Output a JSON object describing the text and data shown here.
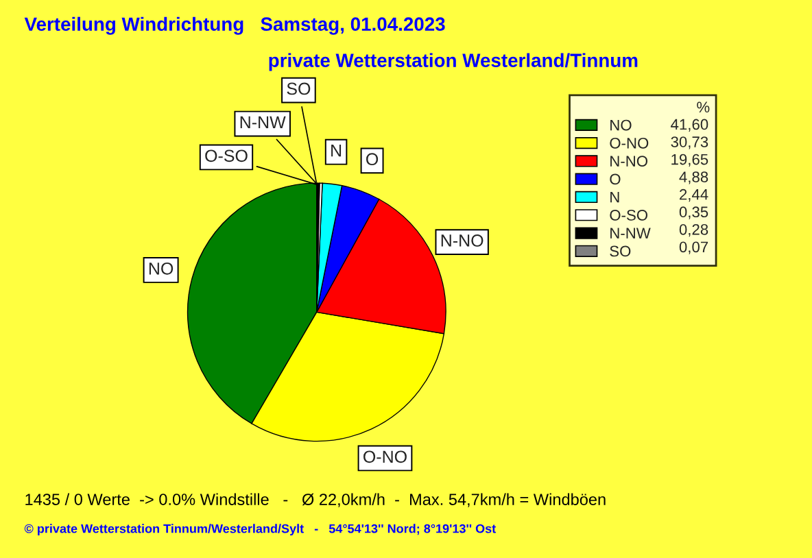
{
  "chart_data": {
    "type": "pie",
    "title": "Verteilung Windrichtung   Samstag, 01.04.2023",
    "subtitle": "private Wetterstation Westerland/Tinnum",
    "categories": [
      "NO",
      "O-NO",
      "N-NO",
      "O",
      "N",
      "O-SO",
      "N-NW",
      "SO"
    ],
    "values": [
      41.6,
      30.73,
      19.65,
      4.88,
      2.44,
      0.35,
      0.28,
      0.07
    ],
    "value_labels": [
      "41,60",
      "30,73",
      "19,65",
      "4,88",
      "2,44",
      "0,35",
      "0,28",
      "0,07"
    ],
    "colors": [
      "#008000",
      "#ffff00",
      "#ff0000",
      "#0000ff",
      "#00ffff",
      "#ffffff",
      "#000000",
      "#808080"
    ],
    "legend": "right",
    "legend_title": "%",
    "annotations": [
      "1435 / 0 Werte  -> 0.0% Windstille   -   Ø 22,0km/h  -  Max. 54,7km/h = Windböen",
      "© private Wetterstation Tinnum/Westerland/Sylt   -   54°54'13'' Nord; 8°19'13'' Ost"
    ]
  }
}
